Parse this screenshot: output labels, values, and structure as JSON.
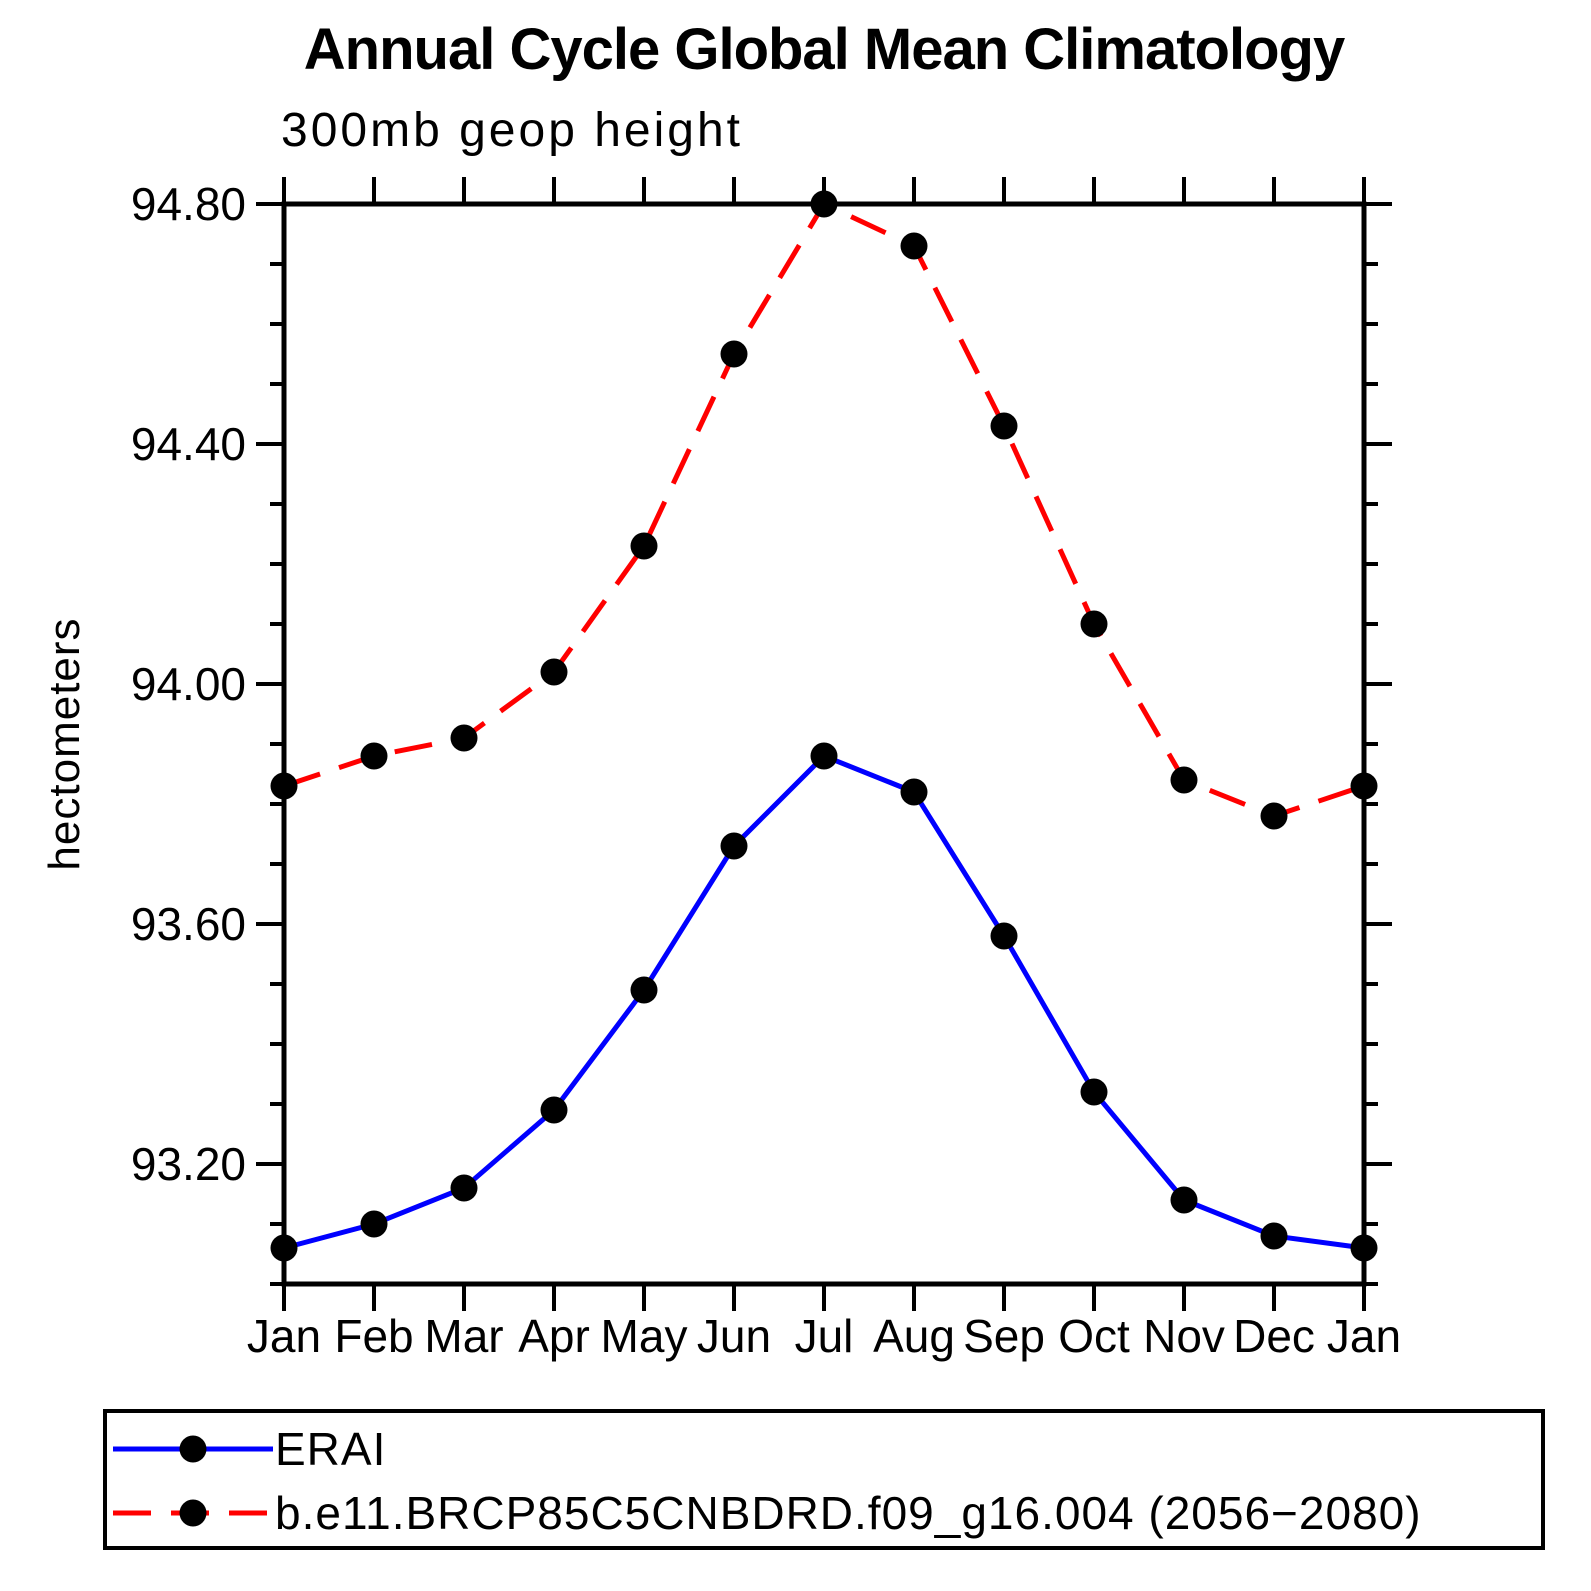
{
  "title": "Annual Cycle Global Mean Climatology",
  "subtitle": "300mb geop height",
  "colors": {
    "background": "#ffffff",
    "axis": "#000000",
    "marker": "#000000",
    "erai_line": "#0000ff",
    "model_line": "#ff0000"
  },
  "chart_data": {
    "type": "line",
    "title": "Annual Cycle Global Mean Climatology",
    "subtitle": "300mb geop height",
    "xlabel": "",
    "ylabel": "hectometers",
    "x_categories": [
      "Jan",
      "Feb",
      "Mar",
      "Apr",
      "May",
      "Jun",
      "Jul",
      "Aug",
      "Sep",
      "Oct",
      "Nov",
      "Dec",
      "Jan"
    ],
    "ylim": [
      93.0,
      94.8
    ],
    "y_major_ticks": [
      93.2,
      93.6,
      94.0,
      94.4,
      94.8
    ],
    "y_major_tick_labels": [
      "93.20",
      "93.60",
      "94.00",
      "94.40",
      "94.80"
    ],
    "y_minor_step": 0.1,
    "grid": false,
    "legend_position": "bottom-left-box",
    "series": [
      {
        "name": "ERAI",
        "color": "#0000ff",
        "line_style": "solid",
        "marker": "filled-circle",
        "marker_color": "#000000",
        "values": [
          93.06,
          93.1,
          93.16,
          93.29,
          93.49,
          93.73,
          93.88,
          93.82,
          93.58,
          93.32,
          93.14,
          93.08,
          93.06
        ]
      },
      {
        "name": "b.e11.BRCP85C5CNBDRD.f09_g16.004 (2056−2080)",
        "color": "#ff0000",
        "line_style": "dashed",
        "marker": "filled-circle",
        "marker_color": "#000000",
        "values": [
          93.83,
          93.88,
          93.91,
          94.02,
          94.23,
          94.55,
          94.8,
          94.73,
          94.43,
          94.1,
          93.84,
          93.78,
          93.83
        ]
      }
    ]
  }
}
